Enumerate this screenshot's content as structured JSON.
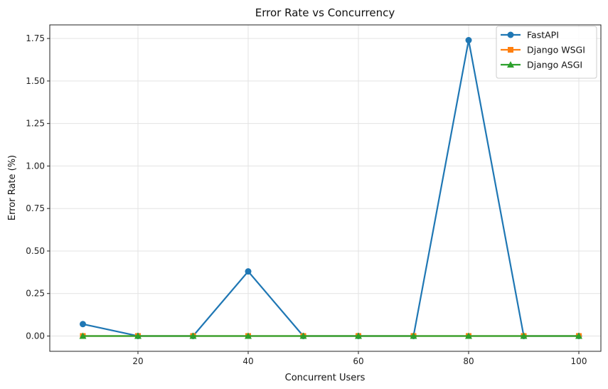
{
  "chart_data": {
    "type": "line",
    "title": "Error Rate vs Concurrency",
    "xlabel": "Concurrent Users",
    "ylabel": "Error Rate (%)",
    "x": [
      10,
      20,
      30,
      40,
      50,
      60,
      70,
      80,
      90,
      100
    ],
    "xlim": [
      4,
      104
    ],
    "ylim": [
      -0.09,
      1.83
    ],
    "xticks": [
      20,
      40,
      60,
      80,
      100
    ],
    "xtick_labels": [
      "20",
      "40",
      "60",
      "80",
      "100"
    ],
    "yticks": [
      0,
      0.25,
      0.5,
      0.75,
      1.0,
      1.25,
      1.5,
      1.75
    ],
    "ytick_labels": [
      "0.00",
      "0.25",
      "0.50",
      "0.75",
      "1.00",
      "1.25",
      "1.50",
      "1.75"
    ],
    "grid": true,
    "legend_position": "top-right",
    "series": [
      {
        "name": "FastAPI",
        "color": "#1f77b4",
        "marker": "circle",
        "values": [
          0.07,
          0.0,
          0.0,
          0.38,
          0.0,
          0.0,
          0.0,
          1.74,
          0.0,
          0.0
        ]
      },
      {
        "name": "Django WSGI",
        "color": "#ff7f0e",
        "marker": "square",
        "values": [
          0,
          0,
          0,
          0,
          0,
          0,
          0,
          0,
          0,
          0
        ]
      },
      {
        "name": "Django ASGI",
        "color": "#2ca02c",
        "marker": "triangle",
        "values": [
          0,
          0,
          0,
          0,
          0,
          0,
          0,
          0,
          0,
          0
        ]
      }
    ]
  }
}
